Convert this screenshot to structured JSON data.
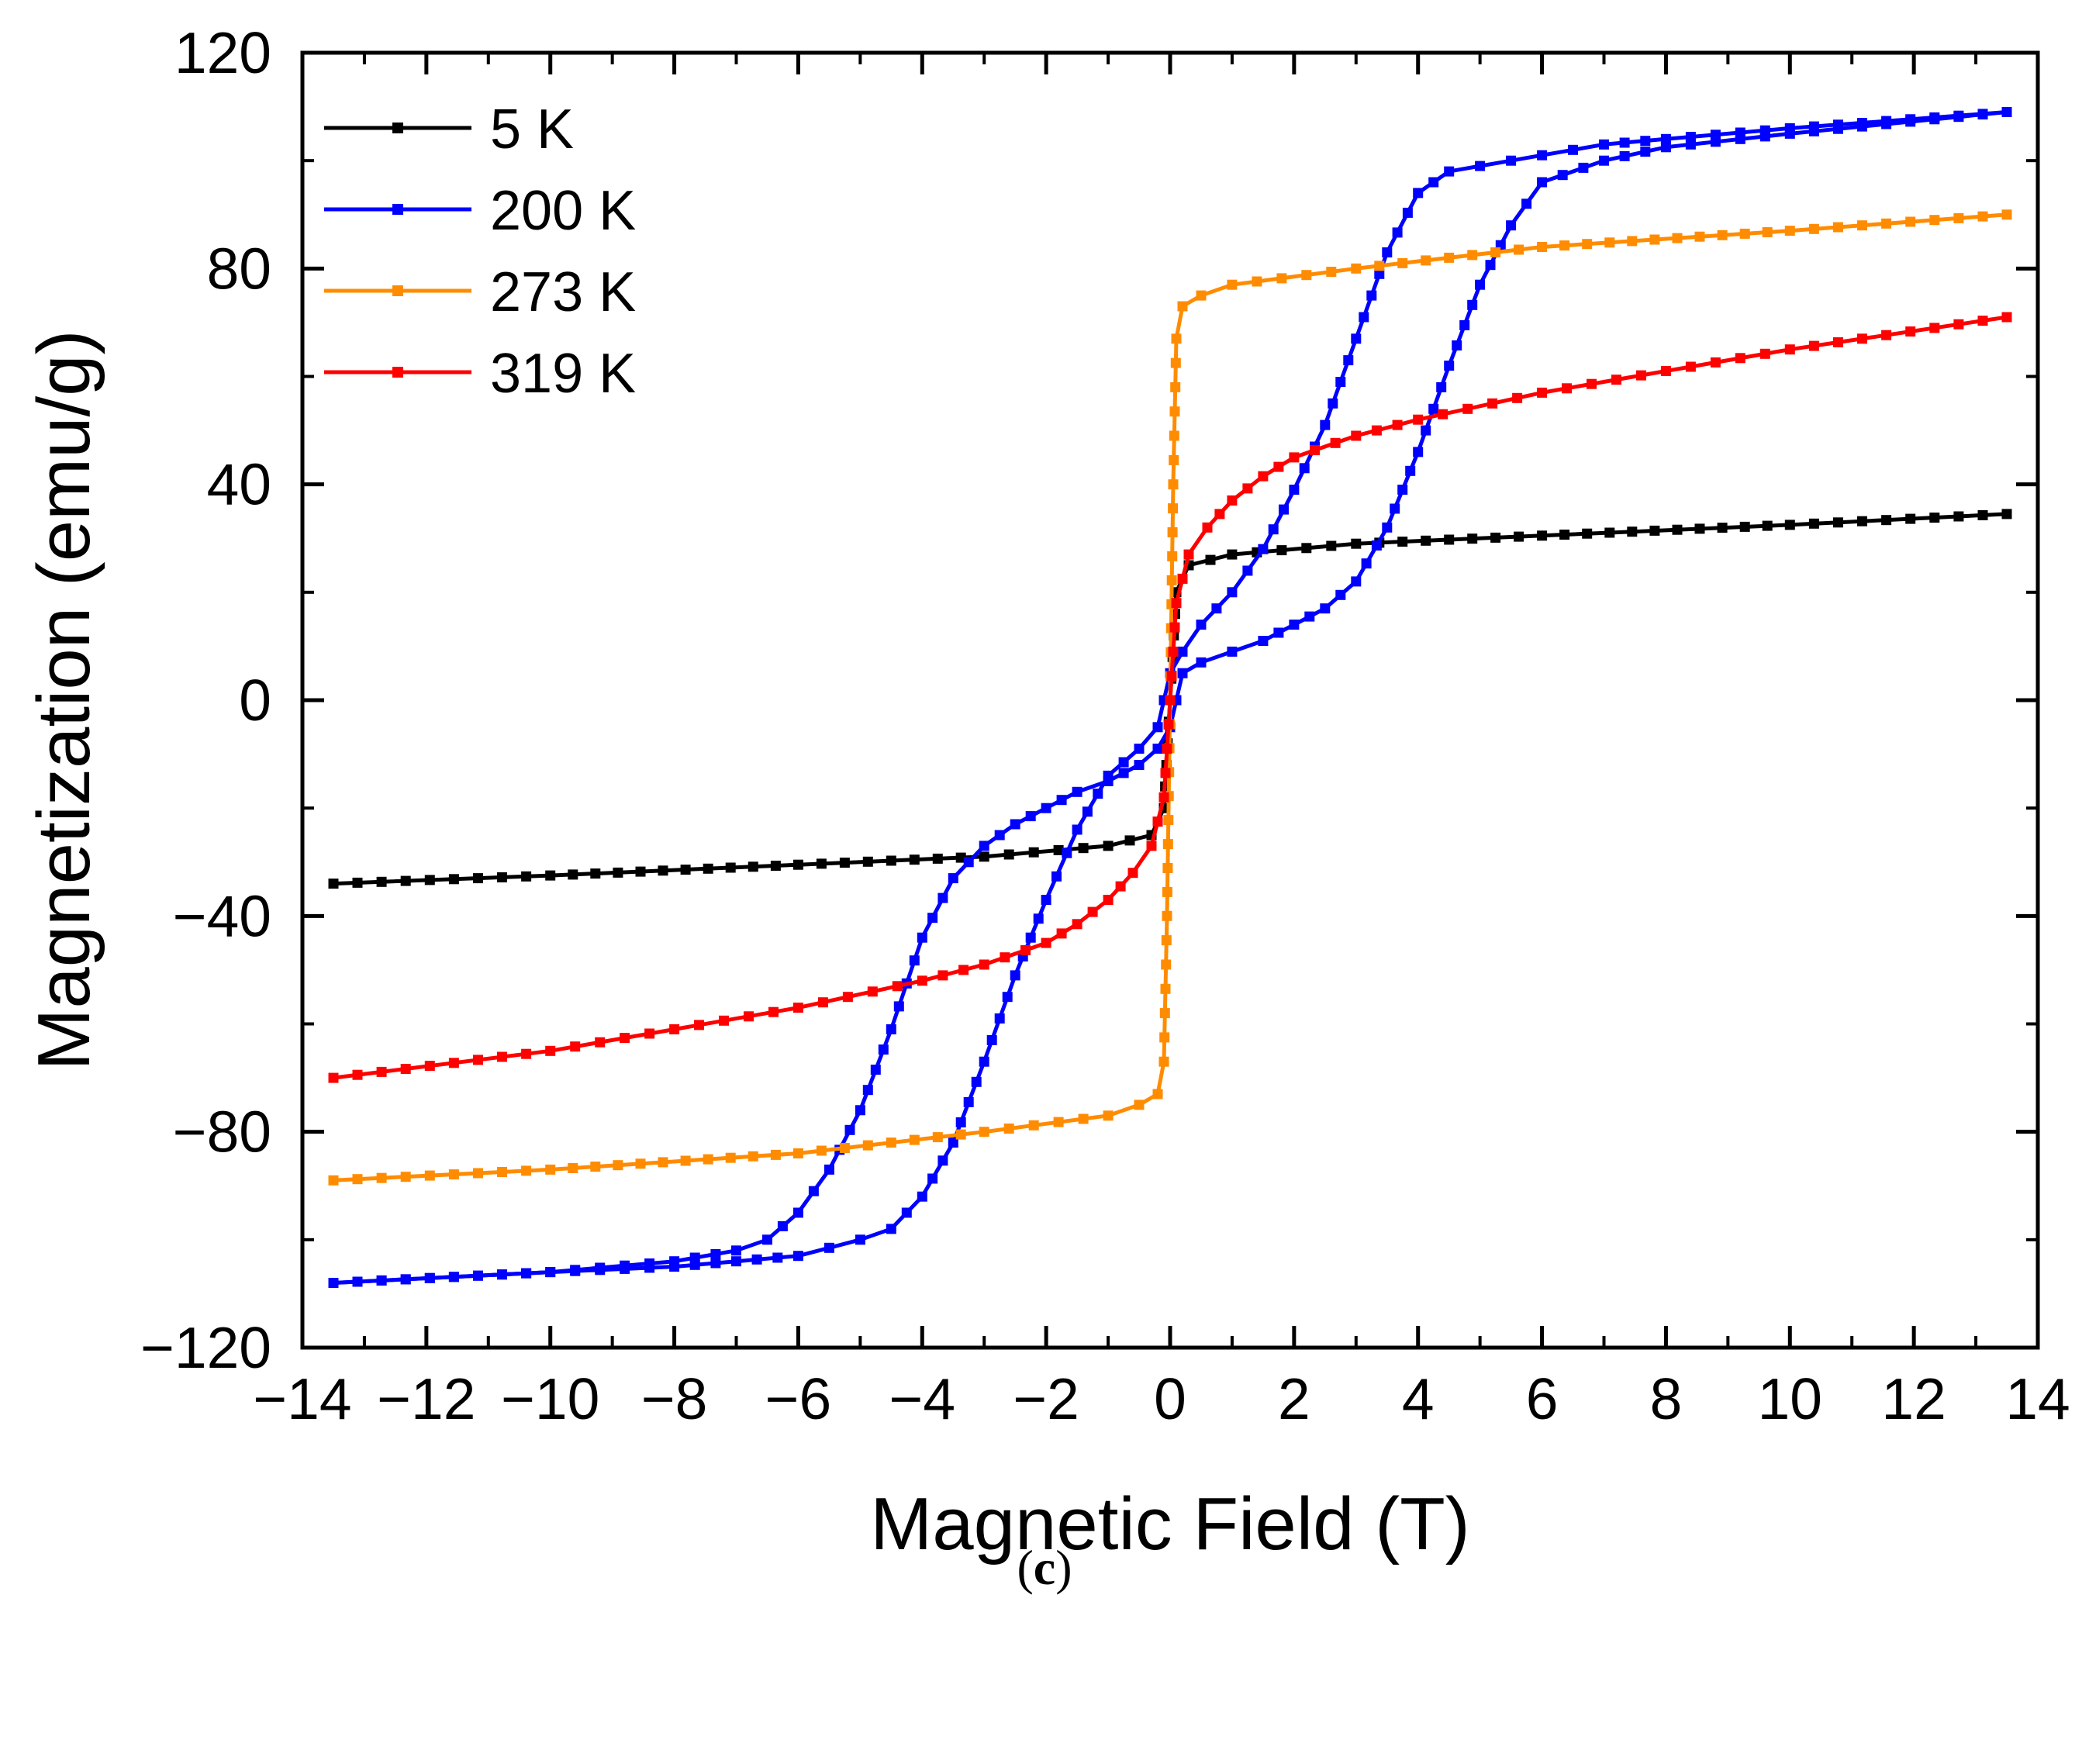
{
  "chart_data": {
    "type": "line",
    "title": "",
    "xlabel": "Magnetic Field (T)",
    "ylabel": "Magnetization (emu/g)",
    "xlim": [
      -14,
      14
    ],
    "ylim": [
      -120,
      120
    ],
    "xticks": [
      -14,
      -12,
      -10,
      -8,
      -6,
      -4,
      -2,
      0,
      2,
      4,
      6,
      8,
      10,
      12,
      14
    ],
    "yticks": [
      -120,
      -80,
      -40,
      0,
      40,
      80,
      120
    ],
    "legend_position": "top-left",
    "series": [
      {
        "name": "5 K",
        "color": "#000000",
        "branches": [
          {
            "x": [
              -13.5,
              -10,
              -6,
              -3,
              -1,
              -0.3,
              -0.1,
              0,
              0.1,
              0.3,
              1,
              3,
              6,
              10,
              13.5
            ],
            "y": [
              -34,
              -32.5,
              -30.5,
              -29,
              -27,
              -25,
              -20,
              0,
              20,
              25,
              27,
              29,
              30.5,
              32.5,
              34.5
            ]
          }
        ]
      },
      {
        "name": "200 K",
        "color": "#0000ff",
        "branches": [
          {
            "x": [
              -13.5,
              -10,
              -8,
              -7,
              -6.5,
              -6,
              -5.5,
              -5,
              -4.5,
              -4,
              -3.5,
              -3,
              -2.5,
              -2,
              -1.5,
              -1,
              -0.5,
              -0.2,
              0,
              0.2,
              0.5,
              1,
              1.5,
              2,
              2.5,
              3,
              3.5,
              4,
              4.5,
              5,
              5.5,
              6,
              7,
              8,
              10,
              13.5
            ],
            "y": [
              -108,
              -106,
              -104,
              -102,
              -100,
              -95,
              -87,
              -76,
              -61,
              -44,
              -33,
              -27,
              -23,
              -20,
              -17,
              -15,
              -12,
              -9,
              -5,
              5,
              7,
              9,
              11,
              14,
              17,
              22,
              32,
              46,
              62,
              77,
              88,
              96,
              100,
              102.5,
              105,
              109
            ]
          },
          {
            "x": [
              13.5,
              10,
              8,
              7,
              6.5,
              6,
              5.5,
              5,
              4.5,
              4,
              3.5,
              3,
              2.5,
              2,
              1.5,
              1,
              0.5,
              0.2,
              0,
              -0.2,
              -0.5,
              -1,
              -1.5,
              -2,
              -2.5,
              -3,
              -3.5,
              -4,
              -4.5,
              -5,
              -5.5,
              -6,
              -7,
              -8,
              -10,
              -13.5
            ],
            "y": [
              109,
              106,
              104,
              103,
              102,
              101,
              100,
              99,
              98,
              94,
              83,
              67,
              51,
              39,
              28,
              20,
              14,
              9,
              5,
              -5,
              -9,
              -14,
              -24,
              -37,
              -51,
              -67,
              -82,
              -92,
              -98,
              -100,
              -101.5,
              -103,
              -104,
              -105,
              -106,
              -108
            ]
          }
        ]
      },
      {
        "name": "273 K",
        "color": "#ff8c00",
        "branches": [
          {
            "x": [
              -13.5,
              -10,
              -6,
              -3,
              -1,
              -0.5,
              -0.2,
              -0.1,
              -0.05,
              0,
              0.05,
              0.1,
              0.2,
              0.5,
              1,
              3,
              6,
              10,
              13.5
            ],
            "y": [
              -89,
              -87,
              -84,
              -80,
              -77,
              -75,
              -73,
              -67,
              -40,
              0,
              40,
              67,
              73,
              75,
              77,
              80,
              84,
              87,
              90
            ]
          }
        ]
      },
      {
        "name": "319 K",
        "color": "#ff0000",
        "branches": [
          {
            "x": [
              -13.5,
              -10,
              -8,
              -6,
              -4,
              -3,
              -2,
              -1.5,
              -1,
              -0.6,
              -0.3,
              -0.1,
              0,
              0.1,
              0.3,
              0.6,
              1,
              1.5,
              2,
              3,
              4,
              6,
              8,
              10,
              13.5
            ],
            "y": [
              -70,
              -65,
              -61,
              -57,
              -52,
              -49,
              -45,
              -41.5,
              -37,
              -32,
              -27,
              -18,
              0,
              18,
              27,
              32,
              37,
              41.5,
              45,
              49,
              52,
              57,
              61,
              65,
              71
            ]
          }
        ]
      }
    ]
  },
  "caption": {
    "open": "(",
    "label": "c",
    "close": ")"
  }
}
